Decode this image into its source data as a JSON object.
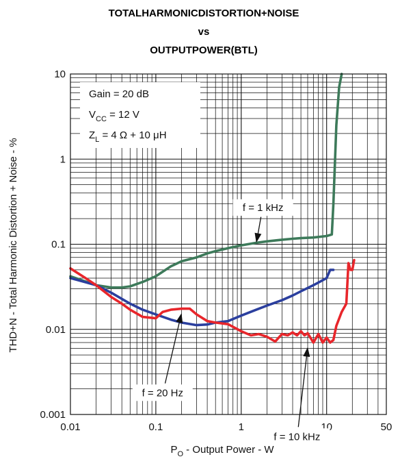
{
  "chart_data": {
    "type": "line",
    "title": [
      "TOTALHARMONICDISTORTION+NOISE",
      "vs",
      "OUTPUTPOWER(BTL)"
    ],
    "xlabel": {
      "main": "P",
      "sub": "O",
      "rest": " - Output Power - W"
    },
    "ylabel": "THD+N - Total Harmonic Distortion + Noise - %",
    "x_scale": "log",
    "y_scale": "log",
    "xlim": [
      0.01,
      50
    ],
    "ylim": [
      0.001,
      10
    ],
    "x_ticks": [
      "0.01",
      "0.1",
      "1",
      "10",
      "50"
    ],
    "x_tick_values": [
      0.01,
      0.1,
      1,
      10,
      50
    ],
    "y_ticks": [
      "0.001",
      "0.01",
      "0.1",
      "1",
      "10"
    ],
    "y_tick_values": [
      0.001,
      0.01,
      0.1,
      1,
      10
    ],
    "grid": true,
    "conditions": {
      "gain": "Gain = 20 dB",
      "vcc_main": "V",
      "vcc_sub": "CC",
      "vcc_rest": " = 12 V",
      "zl_main": "Z",
      "zl_sub": "L",
      "zl_rest": " = 4 Ω + 10 μH"
    },
    "series": [
      {
        "name": "f = 1 kHz",
        "color": "#3d7a5a",
        "x": [
          0.01,
          0.02,
          0.03,
          0.04,
          0.05,
          0.07,
          0.1,
          0.15,
          0.2,
          0.3,
          0.4,
          0.5,
          0.7,
          1,
          1.5,
          2,
          3,
          4,
          5,
          7,
          10,
          11.5,
          12,
          13,
          14,
          15
        ],
        "y": [
          0.042,
          0.033,
          0.031,
          0.031,
          0.032,
          0.036,
          0.042,
          0.055,
          0.063,
          0.07,
          0.078,
          0.083,
          0.09,
          0.097,
          0.104,
          0.108,
          0.113,
          0.116,
          0.118,
          0.12,
          0.125,
          0.13,
          0.3,
          2.5,
          7,
          10
        ]
      },
      {
        "name": "f = 20 Hz",
        "color": "#2b3f9e",
        "x": [
          0.01,
          0.02,
          0.03,
          0.05,
          0.07,
          0.1,
          0.15,
          0.2,
          0.3,
          0.4,
          0.5,
          0.7,
          1,
          1.5,
          2,
          3,
          4,
          5,
          7,
          10,
          11,
          12
        ],
        "y": [
          0.04,
          0.033,
          0.027,
          0.02,
          0.017,
          0.015,
          0.013,
          0.012,
          0.0112,
          0.0114,
          0.012,
          0.0125,
          0.0145,
          0.017,
          0.019,
          0.022,
          0.025,
          0.028,
          0.033,
          0.04,
          0.05,
          0.05
        ]
      },
      {
        "name": "f = 10 kHz",
        "color": "#e8262b",
        "x": [
          0.01,
          0.015,
          0.02,
          0.03,
          0.04,
          0.05,
          0.07,
          0.1,
          0.12,
          0.15,
          0.2,
          0.25,
          0.3,
          0.4,
          0.5,
          0.7,
          1,
          1.3,
          1.6,
          2,
          2.5,
          3,
          3.5,
          4,
          4.5,
          5,
          5.5,
          6,
          7,
          8,
          9,
          10,
          11,
          12,
          13,
          15,
          17,
          18,
          19,
          20,
          21
        ],
        "y": [
          0.052,
          0.04,
          0.033,
          0.024,
          0.02,
          0.017,
          0.014,
          0.0135,
          0.016,
          0.017,
          0.0175,
          0.0175,
          0.015,
          0.0125,
          0.012,
          0.0115,
          0.0095,
          0.0085,
          0.0088,
          0.0082,
          0.0072,
          0.0088,
          0.0085,
          0.0092,
          0.0085,
          0.0095,
          0.0085,
          0.009,
          0.007,
          0.0088,
          0.007,
          0.008,
          0.007,
          0.0075,
          0.011,
          0.016,
          0.02,
          0.06,
          0.05,
          0.05,
          0.065
        ]
      }
    ],
    "annotations": [
      {
        "text": "f = 1 kHz",
        "series": "f = 1 kHz",
        "text_at": [
          1.8,
          0.27
        ],
        "arrow_to": [
          1.5,
          0.104
        ]
      },
      {
        "text": "f = 20 Hz",
        "series": "f = 20 Hz",
        "text_at": [
          0.12,
          0.0018
        ],
        "arrow_to": [
          0.2,
          0.0155
        ]
      },
      {
        "text": "f = 10 kHz",
        "series": "f = 10 kHz",
        "text_at": [
          4.5,
          0.00055
        ],
        "arrow_to": [
          6,
          0.0062
        ]
      }
    ]
  }
}
